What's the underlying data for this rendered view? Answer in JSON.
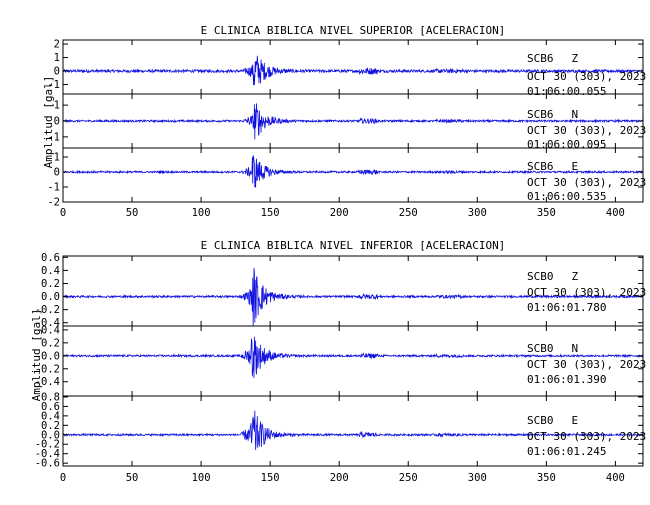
{
  "colors": {
    "trace": "#1010e0",
    "axis": "#000000",
    "background": "#ffffff"
  },
  "chart_data": [
    {
      "type": "line",
      "title": "E CLINICA BIBLICA NIVEL SUPERIOR [ACELERACION]",
      "ylabel": "Amplitud [gal]",
      "xlim": [
        0,
        420
      ],
      "x_ticks": [
        "0",
        "50",
        "100",
        "150",
        "200",
        "250",
        "300",
        "350",
        "400"
      ],
      "panels": [
        {
          "station": "SCB6",
          "component": "Z",
          "date": "OCT 30 (303), 2023",
          "time": "01:06:00.055",
          "ylim": [
            -1.7,
            2.3
          ],
          "y_ticks": [
            {
              "label": "2",
              "value": 2
            },
            {
              "label": "1",
              "value": 1
            },
            {
              "label": "0",
              "value": 0
            },
            {
              "label": "-1",
              "value": -1
            }
          ],
          "noise": 0.1,
          "peak_time": 138,
          "peak_amp": 1.8
        },
        {
          "station": "SCB6",
          "component": "N",
          "date": "OCT 30 (303), 2023",
          "time": "01:06:00.095",
          "ylim": [
            -1.7,
            1.7
          ],
          "y_ticks": [
            {
              "label": "1",
              "value": 1
            },
            {
              "label": "0",
              "value": 0
            },
            {
              "label": "-1",
              "value": -1
            }
          ],
          "noise": 0.06,
          "peak_time": 138,
          "peak_amp": 1.5
        },
        {
          "station": "SCB6",
          "component": "E",
          "date": "OCT 30 (303), 2023",
          "time": "01:06:00.535",
          "ylim": [
            -2.0,
            1.6
          ],
          "y_ticks": [
            {
              "label": "1",
              "value": 1
            },
            {
              "label": "0",
              "value": 0
            },
            {
              "label": "-1",
              "value": -1
            },
            {
              "label": "-2",
              "value": -2
            }
          ],
          "noise": 0.06,
          "peak_time": 137,
          "peak_amp": 1.5
        }
      ]
    },
    {
      "type": "line",
      "title": "E CLINICA BIBLICA NIVEL INFERIOR [ACELERACION]",
      "ylabel": "Amplitud [gal]",
      "xlim": [
        0,
        420
      ],
      "x_ticks": [
        "0",
        "50",
        "100",
        "150",
        "200",
        "250",
        "300",
        "350",
        "400"
      ],
      "panels": [
        {
          "station": "SCB0",
          "component": "Z",
          "date": "OCT 30 (303), 2023",
          "time": "01:06:01.780",
          "ylim": [
            -0.45,
            0.62
          ],
          "y_ticks": [
            {
              "label": "0.6",
              "value": 0.6
            },
            {
              "label": "0.4",
              "value": 0.4
            },
            {
              "label": "0.2",
              "value": 0.2
            },
            {
              "label": "0.0",
              "value": 0.0
            },
            {
              "label": "-0.2",
              "value": -0.2
            },
            {
              "label": "-0.4",
              "value": -0.4
            }
          ],
          "noise": 0.015,
          "peak_time": 137,
          "peak_amp": 0.55
        },
        {
          "station": "SCB0",
          "component": "N",
          "date": "OCT 30 (303), 2023",
          "time": "01:06:01.390",
          "ylim": [
            -0.62,
            0.46
          ],
          "y_ticks": [
            {
              "label": "0.4",
              "value": 0.4
            },
            {
              "label": "0.2",
              "value": 0.2
            },
            {
              "label": "0.0",
              "value": 0.0
            },
            {
              "label": "-0.2",
              "value": -0.2
            },
            {
              "label": "-0.4",
              "value": -0.4
            }
          ],
          "noise": 0.015,
          "peak_time": 136,
          "peak_amp": 0.5
        },
        {
          "station": "SCB0",
          "component": "E",
          "date": "OCT 30 (303), 2023",
          "time": "01:06:01.245",
          "ylim": [
            -0.66,
            0.82
          ],
          "y_ticks": [
            {
              "label": "0.8",
              "value": 0.8
            },
            {
              "label": "0.6",
              "value": 0.6
            },
            {
              "label": "0.4",
              "value": 0.4
            },
            {
              "label": "0.2",
              "value": 0.2
            },
            {
              "label": "0.0",
              "value": 0.0
            },
            {
              "label": "-0.2",
              "value": -0.2
            },
            {
              "label": "-0.4",
              "value": -0.4
            },
            {
              "label": "-0.6",
              "value": -0.6
            }
          ],
          "noise": 0.02,
          "peak_time": 136,
          "peak_amp": 0.75
        }
      ]
    }
  ]
}
